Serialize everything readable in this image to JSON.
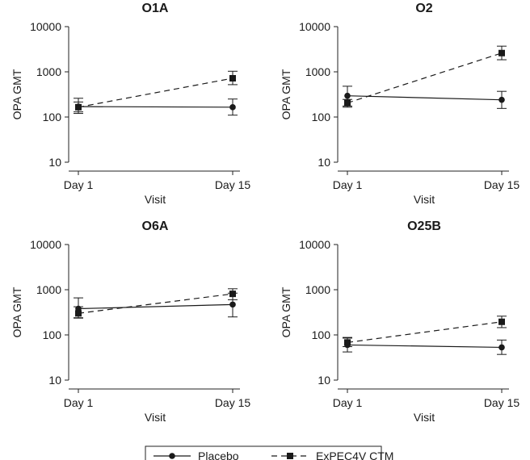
{
  "chart_data": [
    {
      "type": "line",
      "title": "O1A",
      "xlabel": "Visit",
      "ylabel": "OPA GMT",
      "x": [
        "Day 1",
        "Day 15"
      ],
      "yscale": "log",
      "ylim": [
        10,
        10000
      ],
      "yticks": [
        "10",
        "100",
        "1000",
        "10000"
      ],
      "grid": false,
      "series": [
        {
          "name": "Placebo",
          "values": [
            170,
            165
          ],
          "lower": [
            130,
            110
          ],
          "upper": [
            215,
            250
          ]
        },
        {
          "name": "ExPEC4V CTM",
          "values": [
            165,
            720
          ],
          "lower": [
            120,
            520
          ],
          "upper": [
            260,
            1030
          ]
        }
      ]
    },
    {
      "type": "line",
      "title": "O2",
      "xlabel": "Visit",
      "ylabel": "OPA GMT",
      "x": [
        "Day 1",
        "Day 15"
      ],
      "yscale": "log",
      "ylim": [
        10,
        10000
      ],
      "yticks": [
        "10",
        "100",
        "1000",
        "10000"
      ],
      "grid": false,
      "series": [
        {
          "name": "Placebo",
          "values": [
            295,
            240
          ],
          "lower": [
            175,
            155
          ],
          "upper": [
            480,
            370
          ]
        },
        {
          "name": "ExPEC4V CTM",
          "values": [
            205,
            2600
          ],
          "lower": [
            165,
            1850
          ],
          "upper": [
            245,
            3700
          ]
        }
      ]
    },
    {
      "type": "line",
      "title": "O6A",
      "xlabel": "Visit",
      "ylabel": "OPA GMT",
      "x": [
        "Day 1",
        "Day 15"
      ],
      "yscale": "log",
      "ylim": [
        10,
        10000
      ],
      "yticks": [
        "10",
        "100",
        "1000",
        "10000"
      ],
      "grid": false,
      "series": [
        {
          "name": "Placebo",
          "values": [
            380,
            470
          ],
          "lower": [
            240,
            250
          ],
          "upper": [
            660,
            840
          ]
        },
        {
          "name": "ExPEC4V CTM",
          "values": [
            300,
            810
          ],
          "lower": [
            235,
            600
          ],
          "upper": [
            420,
            1050
          ]
        }
      ]
    },
    {
      "type": "line",
      "title": "O25B",
      "xlabel": "Visit",
      "ylabel": "OPA GMT",
      "x": [
        "Day 1",
        "Day 15"
      ],
      "yscale": "log",
      "ylim": [
        10,
        10000
      ],
      "yticks": [
        "10",
        "100",
        "1000",
        "10000"
      ],
      "grid": false,
      "series": [
        {
          "name": "Placebo",
          "values": [
            60,
            53
          ],
          "lower": [
            42,
            37
          ],
          "upper": [
            88,
            77
          ]
        },
        {
          "name": "ExPEC4V CTM",
          "values": [
            68,
            195
          ],
          "lower": [
            55,
            145
          ],
          "upper": [
            85,
            260
          ]
        }
      ]
    }
  ],
  "legend": {
    "placement": "bottom",
    "items": [
      {
        "label": "Placebo",
        "line": "solid",
        "marker": "circle"
      },
      {
        "label": "ExPEC4V CTM",
        "line": "dashed",
        "marker": "square"
      }
    ]
  },
  "colors": {
    "ink": "#1a1a1a",
    "axis": "#222222"
  }
}
